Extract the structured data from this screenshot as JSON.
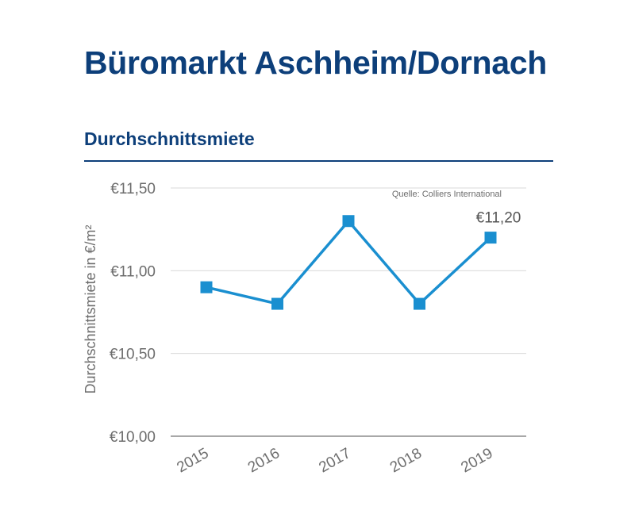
{
  "header": {
    "title": "Büromarkt Aschheim/Dornach",
    "subtitle": "Durchschnittsmiete"
  },
  "chart_data": {
    "type": "line",
    "title": "",
    "xlabel": "",
    "ylabel": "Durchschnittsmiete in €/m²",
    "source": "Quelle: Colliers International",
    "categories": [
      "2015",
      "2016",
      "2017",
      "2018",
      "2019"
    ],
    "series": [
      {
        "values": [
          10.9,
          10.8,
          11.3,
          10.8,
          11.2
        ],
        "color": "#1a8fd0"
      }
    ],
    "ylim": [
      10.0,
      11.5
    ],
    "yticks": [
      10.0,
      10.5,
      11.0,
      11.5
    ],
    "ytick_labels": [
      "€10,00",
      "€10,50",
      "€11,00",
      "€11,50"
    ],
    "data_labels": [
      {
        "category": "2019",
        "text": "€11,20"
      }
    ],
    "grid": true,
    "legend": "none",
    "marker": "square",
    "gridline_color": "#d9d9d9",
    "axis_color": "#8c8c8c",
    "tick_label_color": "#6d6d6d"
  }
}
